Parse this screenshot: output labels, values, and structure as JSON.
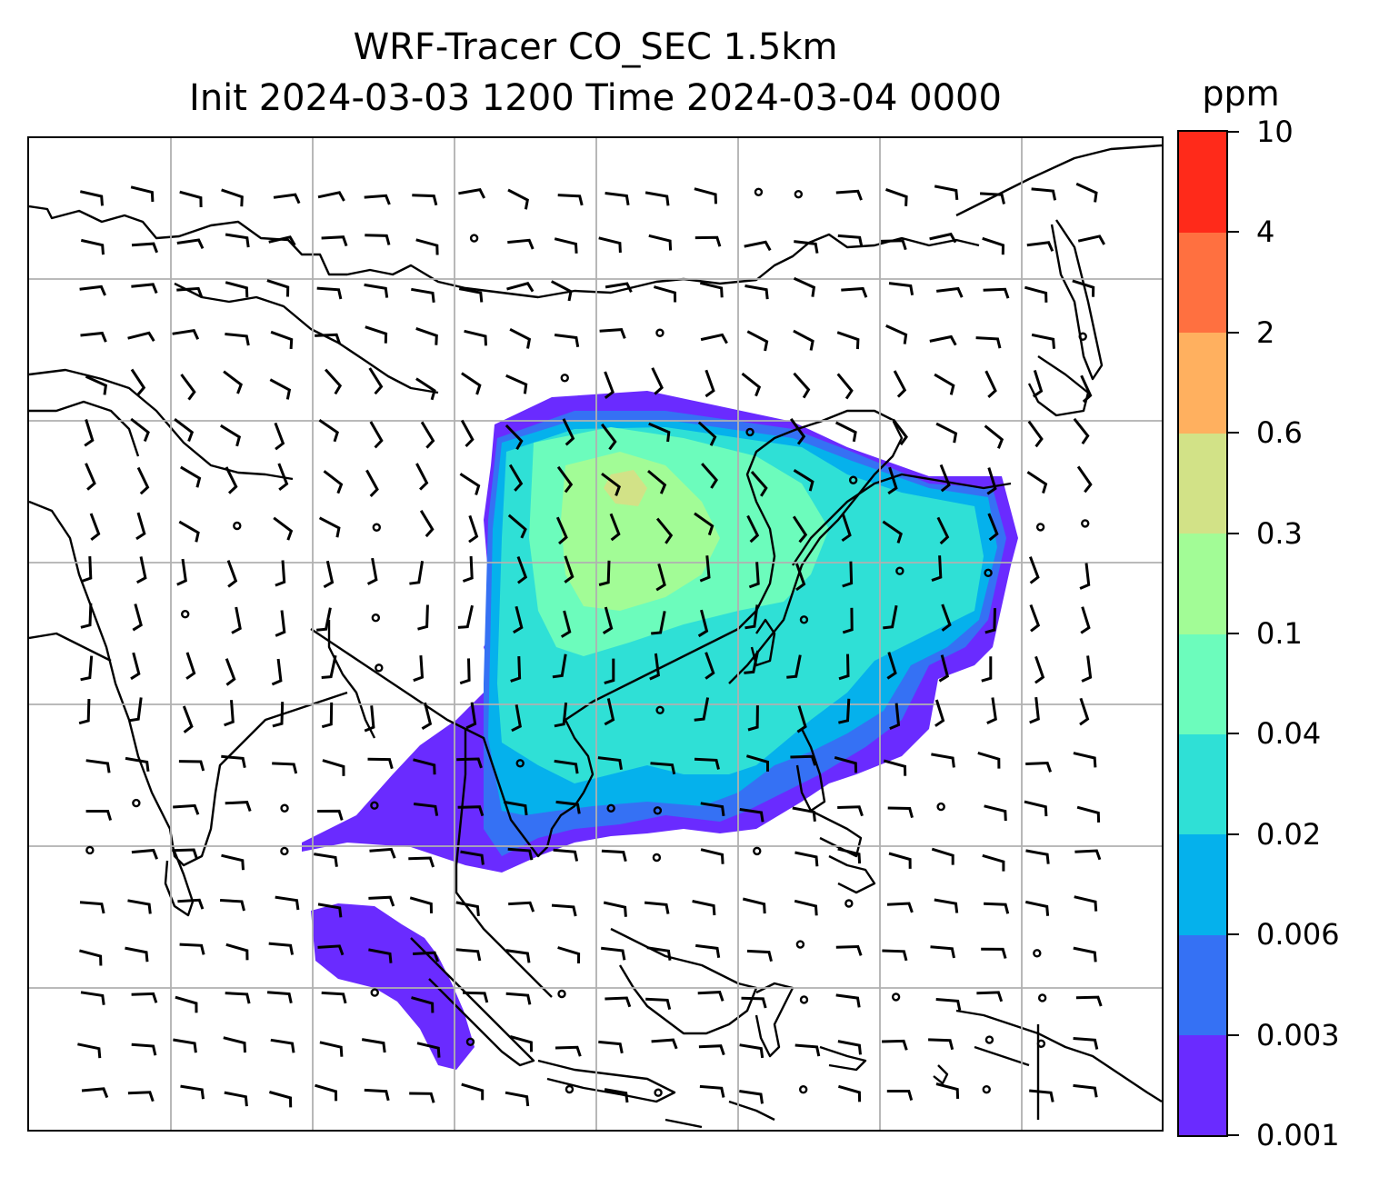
{
  "title": {
    "line1": "WRF-Tracer CO_SEC 1.5km",
    "line2": "Init 2024-03-03 1200 Time 2024-03-04 0000"
  },
  "colorbar": {
    "unit": "ppm",
    "levels": [
      "0.001",
      "0.003",
      "0.006",
      "0.02",
      "0.04",
      "0.1",
      "0.3",
      "0.6",
      "2",
      "4",
      "10"
    ],
    "colors": [
      "#6a2bff",
      "#3571f4",
      "#05b1ec",
      "#2fe0d6",
      "#6cfcbc",
      "#a2fc96",
      "#d2e287",
      "#ffb05f",
      "#ff7040",
      "#ff2a1a"
    ]
  },
  "map": {
    "gridlines": "on",
    "coastline_color": "#000000",
    "gridline_color": "#b0b0b0",
    "wind_barbs": "on"
  }
}
